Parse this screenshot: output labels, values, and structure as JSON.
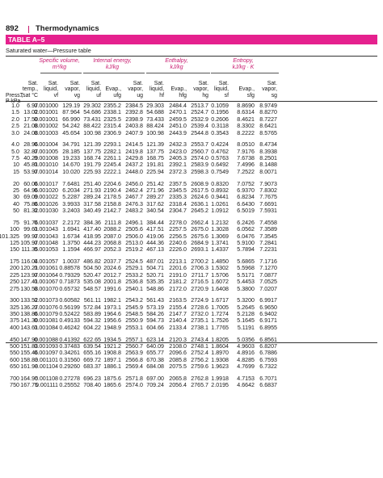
{
  "page": {
    "number": "892",
    "title": "Thermodynamics"
  },
  "table": {
    "label": "TABLE A–5",
    "caption": "Saturated water—Pressure table",
    "groups": [
      {
        "name": "Specific volume,",
        "unit": "m³/kg"
      },
      {
        "name": "Internal energy,",
        "unit": "kJ/kg"
      },
      {
        "name": "Enthalpy,",
        "unit": "kJ/kg"
      },
      {
        "name": "Entropy,",
        "unit": "kJ/kg · K"
      }
    ],
    "headers": [
      [
        "",
        "",
        "Press.,",
        "P kPa"
      ],
      [
        "Sat.",
        "temp.,",
        "Tsat °C",
        ""
      ],
      [
        "Sat.",
        "liquid,",
        "vf",
        ""
      ],
      [
        "Sat.",
        "vapor,",
        "vg",
        ""
      ],
      [
        "Sat.",
        "liquid,",
        "uf",
        ""
      ],
      [
        "",
        "Evap.,",
        "ufg",
        ""
      ],
      [
        "Sat.",
        "vapor,",
        "ug",
        ""
      ],
      [
        "Sat.",
        "liquid,",
        "hf",
        ""
      ],
      [
        "",
        "Evap.,",
        "hfg",
        ""
      ],
      [
        "Sat.",
        "vapor,",
        "hg",
        ""
      ],
      [
        "Sat.",
        "liquid,",
        "sf",
        ""
      ],
      [
        "",
        "Evap.,",
        "sfg",
        ""
      ],
      [
        "Sat.",
        "vapor,",
        "sg",
        ""
      ]
    ],
    "row_groups": [
      [
        [
          "1.0",
          "6.97",
          "0.001000",
          "129.19",
          "29.302",
          "2355.2",
          "2384.5",
          "29.303",
          "2484.4",
          "2513.7",
          "0.1059",
          "8.8690",
          "8.9749"
        ],
        [
          "1.5",
          "13.02",
          "0.001001",
          "87.964",
          "54.686",
          "2338.1",
          "2392.8",
          "54.688",
          "2470.1",
          "2524.7",
          "0.1956",
          "8.6314",
          "8.8270"
        ],
        [
          "2.0",
          "17.50",
          "0.001001",
          "66.990",
          "73.431",
          "2325.5",
          "2398.9",
          "73.433",
          "2459.5",
          "2532.9",
          "0.2606",
          "8.4621",
          "8.7227"
        ],
        [
          "2.5",
          "21.08",
          "0.001002",
          "54.242",
          "88.422",
          "2315.4",
          "2403.8",
          "88.424",
          "2451.0",
          "2539.4",
          "0.3118",
          "8.3302",
          "8.6421"
        ],
        [
          "3.0",
          "24.08",
          "0.001003",
          "45.654",
          "100.98",
          "2306.9",
          "2407.9",
          "100.98",
          "2443.9",
          "2544.8",
          "0.3543",
          "8.2222",
          "8.5765"
        ]
      ],
      [
        [
          "4.0",
          "28.96",
          "0.001004",
          "34.791",
          "121.39",
          "2293.1",
          "2414.5",
          "121.39",
          "2432.3",
          "2553.7",
          "0.4224",
          "8.0510",
          "8.4734"
        ],
        [
          "5.0",
          "32.87",
          "0.001005",
          "28.185",
          "137.75",
          "2282.1",
          "2419.8",
          "137.75",
          "2423.0",
          "2560.7",
          "0.4762",
          "7.9176",
          "8.3938"
        ],
        [
          "7.5",
          "40.29",
          "0.001008",
          "19.233",
          "168.74",
          "2261.1",
          "2429.8",
          "168.75",
          "2405.3",
          "2574.0",
          "0.5763",
          "7.6738",
          "8.2501"
        ],
        [
          "10",
          "45.81",
          "0.001010",
          "14.670",
          "191.79",
          "2245.4",
          "2437.2",
          "191.81",
          "2392.1",
          "2583.9",
          "0.6492",
          "7.4996",
          "8.1488"
        ],
        [
          "15",
          "53.97",
          "0.001014",
          "10.020",
          "225.93",
          "2222.1",
          "2448.0",
          "225.94",
          "2372.3",
          "2598.3",
          "0.7549",
          "7.2522",
          "8.0071"
        ]
      ],
      [
        [
          "20",
          "60.06",
          "0.001017",
          "7.6481",
          "251.40",
          "2204.6",
          "2456.0",
          "251.42",
          "2357.5",
          "2608.9",
          "0.8320",
          "7.0752",
          "7.9073"
        ],
        [
          "25",
          "64.96",
          "0.001020",
          "6.2034",
          "271.93",
          "2190.4",
          "2462.4",
          "271.96",
          "2345.5",
          "2617.5",
          "0.8932",
          "6.9370",
          "7.8302"
        ],
        [
          "30",
          "69.09",
          "0.001022",
          "5.2287",
          "289.24",
          "2178.5",
          "2467.7",
          "289.27",
          "2335.3",
          "2624.6",
          "0.9441",
          "6.8234",
          "7.7675"
        ],
        [
          "40",
          "75.86",
          "0.001026",
          "3.9933",
          "317.58",
          "2158.8",
          "2476.3",
          "317.62",
          "2318.4",
          "2636.1",
          "1.0261",
          "6.6430",
          "7.6691"
        ],
        [
          "50",
          "81.32",
          "0.001030",
          "3.2403",
          "340.49",
          "2142.7",
          "2483.2",
          "340.54",
          "2304.7",
          "2645.2",
          "1.0912",
          "6.5019",
          "7.5931"
        ]
      ],
      [
        [
          "75",
          "91.76",
          "0.001037",
          "2.2172",
          "384.36",
          "2111.8",
          "2496.1",
          "384.44",
          "2278.0",
          "2662.4",
          "1.2132",
          "6.2426",
          "7.4558"
        ],
        [
          "100",
          "99.61",
          "0.001043",
          "1.6941",
          "417.40",
          "2088.2",
          "2505.6",
          "417.51",
          "2257.5",
          "2675.0",
          "1.3028",
          "6.0562",
          "7.3589"
        ],
        [
          "101.325",
          "99.97",
          "0.001043",
          "1.6734",
          "418.95",
          "2087.0",
          "2506.0",
          "419.06",
          "2256.5",
          "2675.6",
          "1.3069",
          "6.0476",
          "7.3545"
        ],
        [
          "125",
          "105.97",
          "0.001048",
          "1.3750",
          "444.23",
          "2068.8",
          "2513.0",
          "444.36",
          "2240.6",
          "2684.9",
          "1.3741",
          "5.9100",
          "7.2841"
        ],
        [
          "150",
          "111.35",
          "0.001053",
          "1.1594",
          "466.97",
          "2052.3",
          "2519.2",
          "467.13",
          "2226.0",
          "2693.1",
          "1.4337",
          "5.7894",
          "7.2231"
        ]
      ],
      [
        [
          "175",
          "116.04",
          "0.001057",
          "1.0037",
          "486.82",
          "2037.7",
          "2524.5",
          "487.01",
          "2213.1",
          "2700.2",
          "1.4850",
          "5.6865",
          "7.1716"
        ],
        [
          "200",
          "120.21",
          "0.001061",
          "0.88578",
          "504.50",
          "2024.6",
          "2529.1",
          "504.71",
          "2201.6",
          "2706.3",
          "1.5302",
          "5.5968",
          "7.1270"
        ],
        [
          "225",
          "123.97",
          "0.001064",
          "0.79329",
          "520.47",
          "2012.7",
          "2533.2",
          "520.71",
          "2191.0",
          "2711.7",
          "1.5706",
          "5.5171",
          "7.0877"
        ],
        [
          "250",
          "127.41",
          "0.001067",
          "0.71873",
          "535.08",
          "2001.8",
          "2536.8",
          "535.35",
          "2181.2",
          "2716.5",
          "1.6072",
          "5.4453",
          "7.0525"
        ],
        [
          "275",
          "130.58",
          "0.001070",
          "0.65732",
          "548.57",
          "1991.6",
          "2540.1",
          "548.86",
          "2172.0",
          "2720.9",
          "1.6408",
          "5.3800",
          "7.0207"
        ]
      ],
      [
        [
          "300",
          "133.52",
          "0.001073",
          "0.60582",
          "561.11",
          "1982.1",
          "2543.2",
          "561.43",
          "2163.5",
          "2724.9",
          "1.6717",
          "5.3200",
          "6.9917"
        ],
        [
          "325",
          "136.27",
          "0.001076",
          "0.56199",
          "572.84",
          "1973.1",
          "2545.9",
          "573.19",
          "2155.4",
          "2728.6",
          "1.7005",
          "5.2645",
          "6.9650"
        ],
        [
          "350",
          "138.86",
          "0.001079",
          "0.52422",
          "583.89",
          "1964.6",
          "2548.5",
          "584.26",
          "2147.7",
          "2732.0",
          "1.7274",
          "5.2128",
          "6.9402"
        ],
        [
          "375",
          "141.30",
          "0.001081",
          "0.49133",
          "594.32",
          "1956.6",
          "2550.9",
          "594.73",
          "2140.4",
          "2735.1",
          "1.7526",
          "5.1645",
          "6.9171"
        ],
        [
          "400",
          "143.61",
          "0.001084",
          "0.46242",
          "604.22",
          "1948.9",
          "2553.1",
          "604.66",
          "2133.4",
          "2738.1",
          "1.7765",
          "5.1191",
          "6.8955"
        ]
      ],
      [
        [
          "450",
          "147.90",
          "0.001088",
          "0.41392",
          "622.65",
          "1934.5",
          "2557.1",
          "623.14",
          "2120.3",
          "2743.4",
          "1.8205",
          "5.0356",
          "6.8561"
        ],
        [
          "500",
          "151.83",
          "0.001093",
          "0.37483",
          "639.54",
          "1921.2",
          "2560.7",
          "640.09",
          "2108.0",
          "2748.1",
          "1.8604",
          "4.9603",
          "6.8207"
        ],
        [
          "550",
          "155.46",
          "0.001097",
          "0.34261",
          "655.16",
          "1908.8",
          "2563.9",
          "655.77",
          "2096.6",
          "2752.4",
          "1.8970",
          "4.8916",
          "6.7886"
        ],
        [
          "600",
          "158.83",
          "0.001101",
          "0.31560",
          "669.72",
          "1897.1",
          "2566.8",
          "670.38",
          "2085.8",
          "2756.2",
          "1.9308",
          "4.8285",
          "6.7593"
        ],
        [
          "650",
          "161.98",
          "0.001104",
          "0.29260",
          "683.37",
          "1886.1",
          "2569.4",
          "684.08",
          "2075.5",
          "2759.6",
          "1.9623",
          "4.7699",
          "6.7322"
        ]
      ],
      [
        [
          "700",
          "164.95",
          "0.001108",
          "0.27278",
          "696.23",
          "1875.6",
          "2571.8",
          "697.00",
          "2065.8",
          "2762.8",
          "1.9918",
          "4.7153",
          "6.7071"
        ],
        [
          "750",
          "167.75",
          "0.001111",
          "0.25552",
          "708.40",
          "1865.6",
          "2574.0",
          "709.24",
          "2056.4",
          "2765.7",
          "2.0195",
          "4.6642",
          "6.6837"
        ]
      ]
    ]
  }
}
